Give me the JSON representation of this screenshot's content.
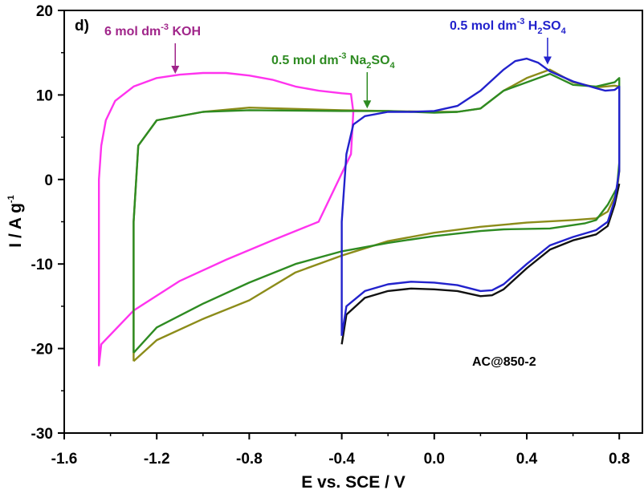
{
  "chart_data": {
    "type": "line",
    "panel_label": "d)",
    "sample_label": "AC@850-2",
    "xlabel": "E vs. SCE / V",
    "ylabel": {
      "main": "I / A g",
      "sup": "-1"
    },
    "xlim": [
      -1.6,
      0.9
    ],
    "ylim": [
      -30,
      20
    ],
    "xticks": [
      -1.6,
      -1.2,
      -0.8,
      -0.4,
      0.0,
      0.4,
      0.8
    ],
    "xtick_labels": [
      "-1.6",
      "-1.2",
      "-0.8",
      "-0.4",
      "0.0",
      "0.4",
      "0.8"
    ],
    "yticks": [
      -30,
      -20,
      -10,
      0,
      10,
      20
    ],
    "ytick_labels": [
      "-30",
      "-20",
      "-10",
      "0",
      "10",
      "20"
    ],
    "annotations": [
      {
        "parts": [
          [
            "6 mol dm",
            ""
          ],
          [
            "-3",
            "sup"
          ],
          [
            " KOH",
            ""
          ]
        ],
        "color": "#a0258a",
        "arrow_x": -1.12,
        "arrow_y": 12.5
      },
      {
        "parts": [
          [
            "0.5 mol dm",
            ""
          ],
          [
            "-3",
            "sup"
          ],
          [
            " Na",
            ""
          ],
          [
            "2",
            "sub"
          ],
          [
            "SO",
            ""
          ],
          [
            "4",
            "sub"
          ]
        ],
        "color": "#2e8b22",
        "arrow_x": -0.29,
        "arrow_y": 8.4
      },
      {
        "parts": [
          [
            "0.5 mol dm",
            ""
          ],
          [
            "-3",
            "sup"
          ],
          [
            " H",
            ""
          ],
          [
            "2",
            "sub"
          ],
          [
            "SO",
            ""
          ],
          [
            "4",
            "sub"
          ]
        ],
        "color": "#2222cc",
        "arrow_x": 0.49,
        "arrow_y": 13.6
      }
    ],
    "series": [
      {
        "color": "#ff33ee",
        "x": [
          -0.35,
          -0.36,
          -0.5,
          -0.7,
          -0.9,
          -1.1,
          -1.3,
          -1.44,
          -1.45,
          -1.45,
          -1.44,
          -1.42,
          -1.38,
          -1.3,
          -1.2,
          -1.1,
          -1.0,
          -0.9,
          -0.8,
          -0.7,
          -0.6,
          -0.5,
          -0.4,
          -0.36,
          -0.35
        ],
        "y": [
          8.0,
          3.0,
          -5.0,
          -7.2,
          -9.5,
          -12.0,
          -15.5,
          -19.5,
          -22.0,
          0.0,
          4.0,
          7.0,
          9.3,
          11.0,
          12.0,
          12.4,
          12.6,
          12.6,
          12.3,
          11.8,
          11.0,
          10.5,
          10.2,
          10.1,
          8.0
        ]
      },
      {
        "color": "#8c8c1a",
        "x": [
          -1.3,
          -1.2,
          -1.0,
          -0.8,
          -0.6,
          -0.4,
          -0.2,
          0.0,
          0.2,
          0.4,
          0.6,
          0.7,
          0.75,
          0.79,
          0.8,
          0.8,
          0.78,
          0.7,
          0.6,
          0.5,
          0.4,
          0.3,
          0.2,
          0.1,
          0.0,
          -0.2,
          -0.4,
          -0.8,
          -1.0,
          -1.2,
          -1.28,
          -1.3,
          -1.3
        ],
        "y": [
          -21.5,
          -19.0,
          -16.5,
          -14.3,
          -11.0,
          -9.0,
          -7.3,
          -6.3,
          -5.6,
          -5.1,
          -4.8,
          -4.6,
          -3.8,
          -1.5,
          1.0,
          11.0,
          11.1,
          10.9,
          11.5,
          13.0,
          12.0,
          10.5,
          8.4,
          8.0,
          8.0,
          8.1,
          8.2,
          8.5,
          8.0,
          7.0,
          4.0,
          -5.0,
          -21.5
        ]
      },
      {
        "color": "#2e8b22",
        "x": [
          -1.3,
          -1.2,
          -1.0,
          -0.8,
          -0.6,
          -0.4,
          -0.2,
          0.0,
          0.2,
          0.3,
          0.5,
          0.65,
          0.7,
          0.75,
          0.79,
          0.8,
          0.8,
          0.78,
          0.7,
          0.6,
          0.5,
          0.4,
          0.3,
          0.2,
          0.1,
          0.0,
          -0.2,
          -0.4,
          -0.8,
          -1.0,
          -1.2,
          -1.28,
          -1.3,
          -1.3
        ],
        "y": [
          -20.5,
          -17.5,
          -14.7,
          -12.2,
          -10.0,
          -8.5,
          -7.5,
          -6.7,
          -6.1,
          -5.9,
          -5.8,
          -5.2,
          -4.8,
          -3.0,
          -1.0,
          2.0,
          12.0,
          11.5,
          11.0,
          11.2,
          12.5,
          11.5,
          10.5,
          8.4,
          8.0,
          7.9,
          8.1,
          8.1,
          8.2,
          8.0,
          7.0,
          4.0,
          -5.0,
          -20.5
        ]
      },
      {
        "color": "#111111",
        "x": [
          -0.4,
          -0.38,
          -0.3,
          -0.2,
          -0.1,
          0.0,
          0.1,
          0.2,
          0.25,
          0.3,
          0.4,
          0.5,
          0.6,
          0.7,
          0.75,
          0.78,
          0.8
        ],
        "y": [
          -19.5,
          -16.0,
          -14.0,
          -13.2,
          -12.9,
          -13.0,
          -13.2,
          -13.8,
          -13.7,
          -13.0,
          -10.5,
          -8.3,
          -7.2,
          -6.5,
          -5.5,
          -3.0,
          -0.5
        ]
      },
      {
        "color": "#2222cc",
        "x": [
          -0.4,
          -0.38,
          -0.3,
          -0.2,
          -0.1,
          0.0,
          0.1,
          0.2,
          0.25,
          0.3,
          0.4,
          0.5,
          0.6,
          0.7,
          0.75,
          0.78,
          0.8,
          0.8,
          0.78,
          0.74,
          0.7,
          0.6,
          0.5,
          0.45,
          0.4,
          0.35,
          0.3,
          0.2,
          0.1,
          0.0,
          -0.1,
          -0.2,
          -0.3,
          -0.35,
          -0.38,
          -0.4,
          -0.4
        ],
        "y": [
          -18.5,
          -15.0,
          -13.2,
          -12.4,
          -12.1,
          -12.2,
          -12.5,
          -13.2,
          -13.1,
          -12.4,
          -10.0,
          -7.8,
          -6.8,
          -6.0,
          -5.0,
          -2.5,
          1.0,
          11.0,
          10.6,
          10.5,
          10.8,
          11.6,
          12.8,
          13.8,
          14.3,
          14.0,
          13.0,
          10.5,
          8.7,
          8.1,
          8.0,
          8.0,
          7.5,
          6.5,
          3.0,
          -5.0,
          -18.5
        ]
      }
    ]
  }
}
